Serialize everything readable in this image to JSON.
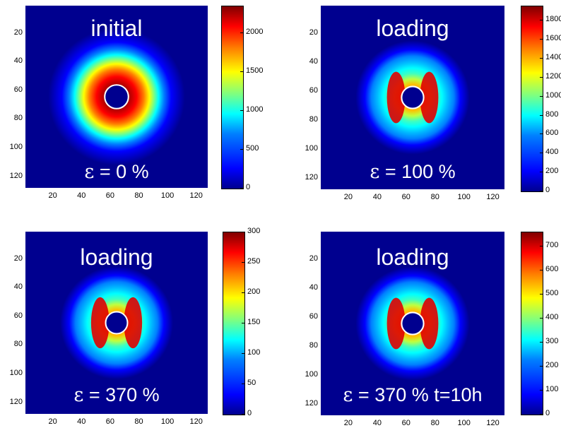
{
  "chart_data": [
    {
      "type": "heatmap",
      "title": "initial",
      "annotation": {
        "eps": "ε",
        "text": " = 0 %"
      },
      "x_ticks": [
        20,
        40,
        60,
        80,
        100,
        120
      ],
      "y_ticks": [
        20,
        40,
        60,
        80,
        100,
        120
      ],
      "xlim": [
        1,
        128
      ],
      "ylim": [
        1,
        128
      ],
      "colorbar": {
        "min": 0,
        "max": 2350,
        "ticks": [
          0,
          500,
          1000,
          1500,
          2000
        ]
      }
    },
    {
      "type": "heatmap",
      "title": "loading",
      "annotation": {
        "eps": "ε",
        "text": " = 100 %"
      },
      "x_ticks": [
        20,
        40,
        60,
        80,
        100,
        120
      ],
      "y_ticks": [
        20,
        40,
        60,
        80,
        100,
        120
      ],
      "xlim": [
        1,
        128
      ],
      "ylim": [
        1,
        128
      ],
      "colorbar": {
        "min": 0,
        "max": 1950,
        "ticks": [
          0,
          200,
          400,
          600,
          800,
          1000,
          1200,
          1400,
          1600,
          1800
        ]
      }
    },
    {
      "type": "heatmap",
      "title": "loading",
      "annotation": {
        "eps": "ε",
        "text": " = 370 %"
      },
      "x_ticks": [
        20,
        40,
        60,
        80,
        100,
        120
      ],
      "y_ticks": [
        20,
        40,
        60,
        80,
        100,
        120
      ],
      "xlim": [
        1,
        128
      ],
      "ylim": [
        1,
        128
      ],
      "colorbar": {
        "min": 0,
        "max": 300,
        "ticks": [
          0,
          50,
          100,
          150,
          200,
          250,
          300
        ]
      }
    },
    {
      "type": "heatmap",
      "title": "loading",
      "annotation": {
        "eps": "ε",
        "text": " = 370 % t=10h"
      },
      "x_ticks": [
        20,
        40,
        60,
        80,
        100,
        120
      ],
      "y_ticks": [
        20,
        40,
        60,
        80,
        100,
        120
      ],
      "xlim": [
        1,
        128
      ],
      "ylim": [
        1,
        128
      ],
      "colorbar": {
        "min": 0,
        "max": 760,
        "ticks": [
          0,
          100,
          200,
          300,
          400,
          500,
          600,
          700
        ]
      }
    }
  ]
}
